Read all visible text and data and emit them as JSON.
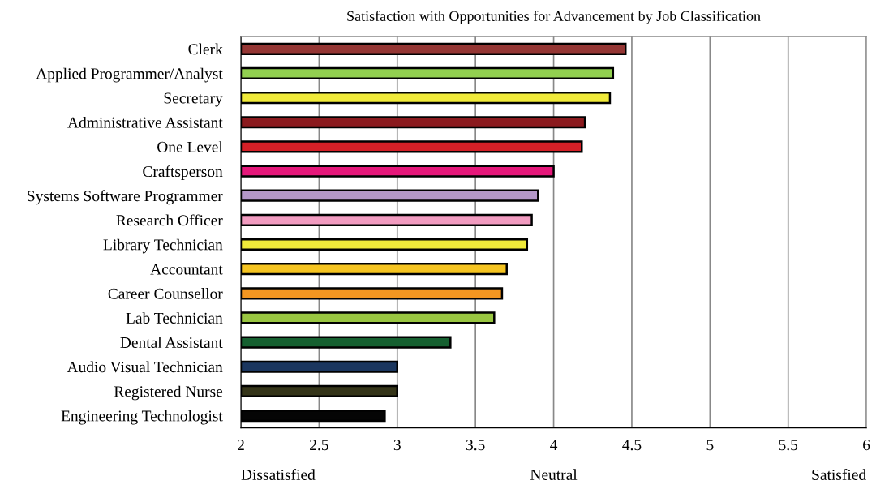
{
  "chart_data": {
    "type": "bar",
    "orientation": "horizontal",
    "title": "Satisfaction with Opportunities for Advancement by Job Classification",
    "categories": [
      "Clerk",
      "Applied Programmer/Analyst",
      "Secretary",
      "Administrative Assistant",
      "One Level",
      "Craftsperson",
      "Systems Software Programmer",
      "Research Officer",
      "Library Technician",
      "Accountant",
      "Career Counsellor",
      "Lab Technician",
      "Dental Assistant",
      "Audio Visual Technician",
      "Registered Nurse",
      "Engineering Technologist"
    ],
    "values": [
      4.46,
      4.38,
      4.36,
      4.2,
      4.18,
      4.0,
      3.9,
      3.86,
      3.83,
      3.7,
      3.67,
      3.62,
      3.34,
      3.0,
      3.0,
      2.92
    ],
    "colors": [
      "#943634",
      "#92d050",
      "#f0ea3a",
      "#8b1a1e",
      "#d42027",
      "#e5177a",
      "#b497c8",
      "#f19bc0",
      "#f0ea3a",
      "#f5c421",
      "#f39621",
      "#99c641",
      "#156030",
      "#1b365f",
      "#343418",
      "#050505"
    ],
    "xlim": [
      2,
      6
    ],
    "xticks": [
      2,
      2.5,
      3,
      3.5,
      4,
      4.5,
      5,
      5.5,
      6
    ],
    "grid": "x",
    "annotations": [
      "Dissatisfied",
      "Neutral",
      "Satisfied"
    ]
  }
}
